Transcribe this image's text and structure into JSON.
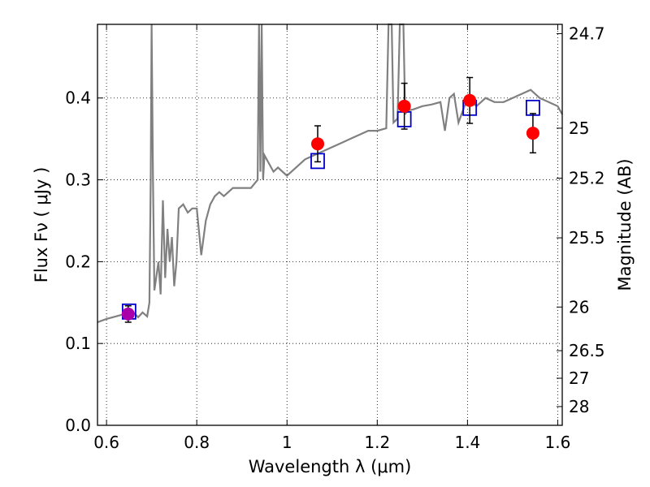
{
  "chart_data": {
    "type": "scatter",
    "xlabel": "Wavelength  λ (μm)",
    "ylabel": "Flux  Fν  ( μJy )",
    "y2label": "Magnitude (AB)",
    "xlim": [
      0.58,
      1.61
    ],
    "ylim": [
      0.0,
      0.49
    ],
    "grid": true,
    "x_ticks": [
      {
        "v": 0.6,
        "label": "0.6"
      },
      {
        "v": 0.8,
        "label": "0.8"
      },
      {
        "v": 1.0,
        "label": "1"
      },
      {
        "v": 1.2,
        "label": "1.2"
      },
      {
        "v": 1.4,
        "label": "1.4"
      },
      {
        "v": 1.6,
        "label": "1.6"
      }
    ],
    "y_ticks": [
      {
        "v": 0.0,
        "label": "0.0"
      },
      {
        "v": 0.1,
        "label": "0.1"
      },
      {
        "v": 0.2,
        "label": "0.2"
      },
      {
        "v": 0.3,
        "label": "0.3"
      },
      {
        "v": 0.4,
        "label": "0.4"
      }
    ],
    "mag_ticks": [
      {
        "v": 24.7,
        "label": "24.7"
      },
      {
        "v": 25,
        "label": "25"
      },
      {
        "v": 25.2,
        "label": "25.2"
      },
      {
        "v": 25.5,
        "label": "25.5"
      },
      {
        "v": 26,
        "label": "26"
      },
      {
        "v": 26.5,
        "label": "26.5"
      },
      {
        "v": 27,
        "label": "27"
      },
      {
        "v": 28,
        "label": "28"
      }
    ],
    "colors": {
      "model": "#808080",
      "observed": "#ff0000",
      "magenta": "#aa00aa",
      "synthetic": "#0000cc"
    },
    "model_spectrum": {
      "x": [
        0.58,
        0.6,
        0.62,
        0.64,
        0.66,
        0.67,
        0.68,
        0.69,
        0.695,
        0.698,
        0.7,
        0.703,
        0.706,
        0.71,
        0.715,
        0.72,
        0.725,
        0.73,
        0.735,
        0.74,
        0.745,
        0.75,
        0.755,
        0.76,
        0.77,
        0.78,
        0.79,
        0.8,
        0.81,
        0.82,
        0.83,
        0.84,
        0.85,
        0.86,
        0.87,
        0.88,
        0.9,
        0.92,
        0.935,
        0.938,
        0.941,
        0.944,
        0.947,
        0.95,
        0.96,
        0.97,
        0.98,
        0.99,
        1.0,
        1.02,
        1.04,
        1.06,
        1.08,
        1.1,
        1.12,
        1.14,
        1.16,
        1.18,
        1.2,
        1.22,
        1.225,
        1.228,
        1.232,
        1.236,
        1.24,
        1.245,
        1.25,
        1.255,
        1.258,
        1.262,
        1.266,
        1.27,
        1.28,
        1.3,
        1.32,
        1.34,
        1.35,
        1.36,
        1.37,
        1.38,
        1.4,
        1.42,
        1.44,
        1.46,
        1.48,
        1.5,
        1.52,
        1.54,
        1.56,
        1.58,
        1.6,
        1.61
      ],
      "y": [
        0.126,
        0.13,
        0.133,
        0.136,
        0.138,
        0.132,
        0.138,
        0.133,
        0.15,
        0.3,
        0.49,
        0.3,
        0.165,
        0.18,
        0.2,
        0.16,
        0.275,
        0.18,
        0.24,
        0.2,
        0.23,
        0.17,
        0.2,
        0.265,
        0.27,
        0.26,
        0.265,
        0.265,
        0.208,
        0.25,
        0.27,
        0.28,
        0.285,
        0.28,
        0.285,
        0.29,
        0.29,
        0.29,
        0.3,
        0.49,
        0.31,
        0.49,
        0.3,
        0.33,
        0.32,
        0.31,
        0.315,
        0.31,
        0.305,
        0.315,
        0.325,
        0.33,
        0.335,
        0.34,
        0.345,
        0.35,
        0.355,
        0.36,
        0.36,
        0.363,
        0.49,
        0.49,
        0.49,
        0.37,
        0.372,
        0.375,
        0.49,
        0.49,
        0.49,
        0.38,
        0.385,
        0.385,
        0.386,
        0.39,
        0.392,
        0.395,
        0.36,
        0.4,
        0.405,
        0.37,
        0.4,
        0.39,
        0.4,
        0.395,
        0.395,
        0.4,
        0.405,
        0.41,
        0.4,
        0.395,
        0.39,
        0.38
      ]
    },
    "observed": [
      {
        "x": 0.648,
        "y": 0.136,
        "err": 0.01,
        "color": "magenta"
      },
      {
        "x": 1.068,
        "y": 0.344,
        "err": 0.022,
        "color": "red"
      },
      {
        "x": 1.26,
        "y": 0.39,
        "err": 0.028,
        "color": "red"
      },
      {
        "x": 1.405,
        "y": 0.397,
        "err": 0.028,
        "color": "red"
      },
      {
        "x": 1.545,
        "y": 0.357,
        "err": 0.024,
        "color": "red"
      }
    ],
    "synthetic": [
      {
        "x": 0.65,
        "y": 0.139
      },
      {
        "x": 1.068,
        "y": 0.323
      },
      {
        "x": 1.26,
        "y": 0.374
      },
      {
        "x": 1.405,
        "y": 0.388
      },
      {
        "x": 1.545,
        "y": 0.388
      }
    ]
  }
}
